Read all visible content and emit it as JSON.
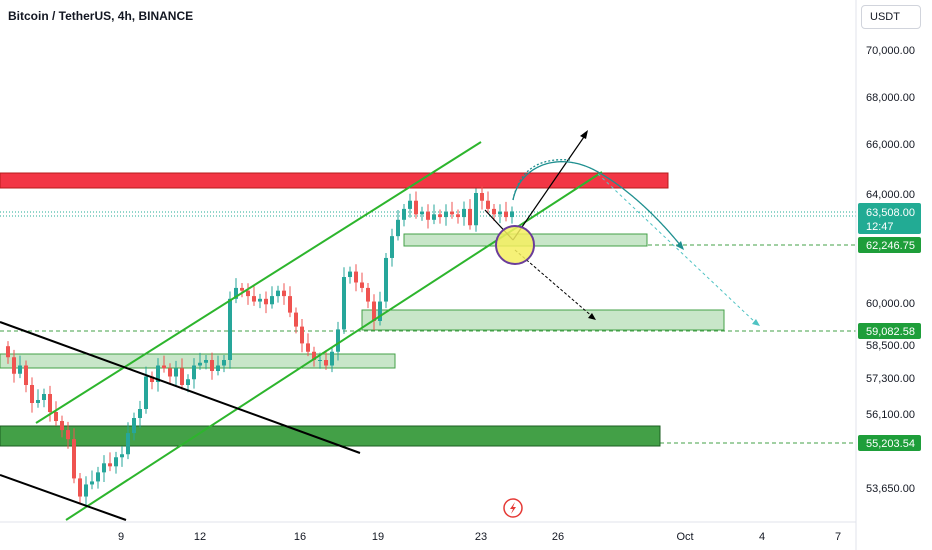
{
  "header": {
    "title": "Bitcoin / TetherUS, 4h, BINANCE",
    "currency": "USDT"
  },
  "colors": {
    "up": "#26a69a",
    "down": "#ef5350",
    "channel": "#2db52d",
    "resistance": "#f23645",
    "support_box": "#c8e6c9",
    "support_strong": "#43a047",
    "projection": "#1e8f8f",
    "bearish_line": "#000000",
    "badge_current": "#22ab94",
    "badge_level": "#1e9e3a"
  },
  "chart_data": {
    "type": "candlestick",
    "symbol": "Bitcoin / TetherUS",
    "timeframe": "4h",
    "exchange": "BINANCE",
    "y_ticks": [
      "70,000.00",
      "68,000.00",
      "66,000.00",
      "64,000.00",
      "60,000.00",
      "58,500.00",
      "57,300.00",
      "56,100.00",
      "53,650.00"
    ],
    "x_ticks": [
      "9",
      "12",
      "16",
      "19",
      "23",
      "26",
      "Oct",
      "4",
      "7"
    ],
    "price_labels": {
      "current_price": "63,508.00",
      "countdown": "12:47",
      "level_1": "62,246.75",
      "level_2": "59,082.58",
      "level_3": "55,203.54"
    },
    "levels": [
      62246.75,
      59082.58,
      55203.54
    ],
    "resistance_zone": [
      64750,
      65100
    ],
    "closes": [
      58200,
      57600,
      57900,
      57200,
      56600,
      56700,
      56900,
      56300,
      56000,
      55700,
      55400,
      54100,
      53500,
      53900,
      54000,
      54300,
      54600,
      54500,
      54800,
      54900,
      55600,
      56100,
      56400,
      57500,
      57300,
      57900,
      57800,
      57500,
      57800,
      57200,
      57400,
      57900,
      58000,
      58100,
      57700,
      57900,
      58100,
      60300,
      60700,
      60600,
      60400,
      60200,
      60300,
      60100,
      60400,
      60600,
      60400,
      59800,
      59300,
      58700,
      58400,
      58100,
      58100,
      57900,
      58400,
      59200,
      61100,
      61300,
      60900,
      60700,
      60200,
      59500,
      60200,
      61800,
      62600,
      63200,
      63600,
      63900,
      63400,
      63500,
      63200,
      63400,
      63300,
      63500,
      63400,
      63300,
      63600,
      63000,
      64200,
      63900,
      63600,
      63400,
      63500,
      63300,
      63508
    ]
  }
}
